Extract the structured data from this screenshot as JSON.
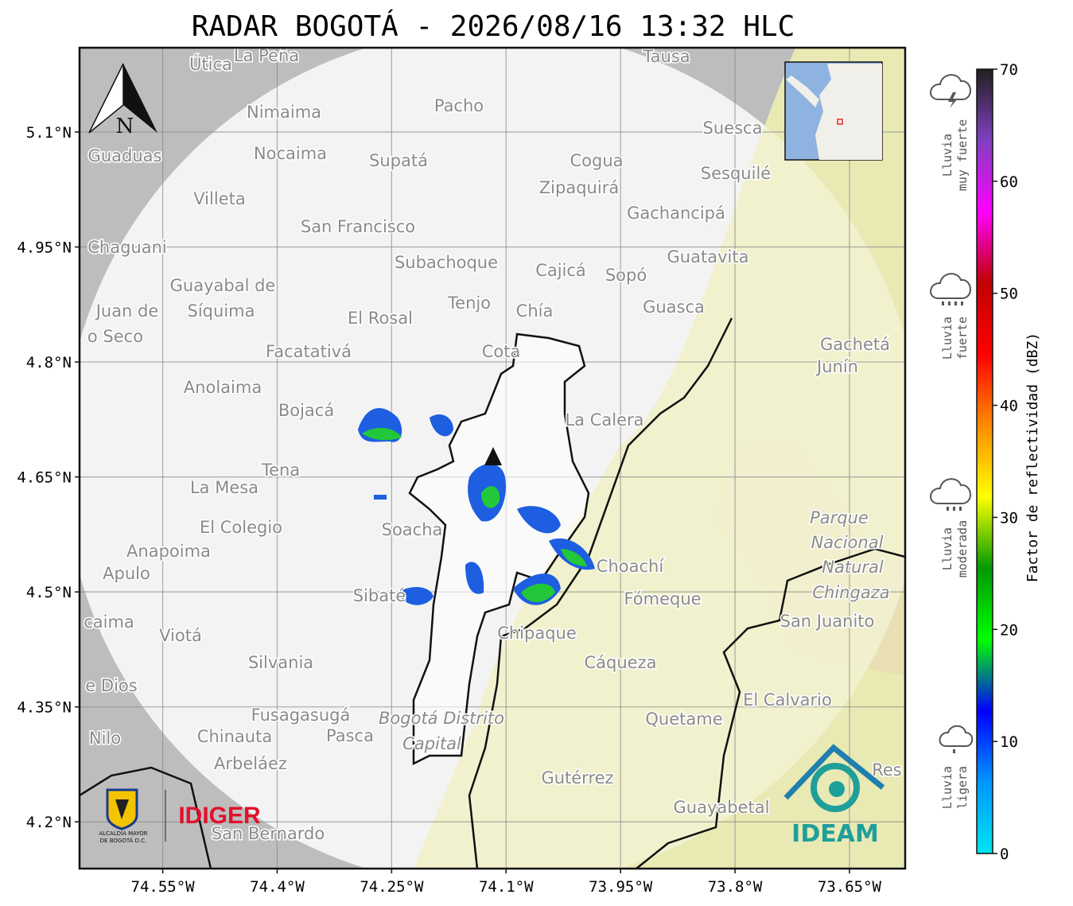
{
  "title": "RADAR BOGOTÁ - 2026/08/16 13:32 HLC",
  "north": "N",
  "xlim": [
    -74.659,
    -73.577
  ],
  "ylim": [
    4.139,
    5.21
  ],
  "xticks": [
    {
      "value": -74.55,
      "label": "74.55°W"
    },
    {
      "value": -74.4,
      "label": "74.4°W"
    },
    {
      "value": -74.25,
      "label": "74.25°W"
    },
    {
      "value": -74.1,
      "label": "74.1°W"
    },
    {
      "value": -73.95,
      "label": "73.95°W"
    },
    {
      "value": -73.8,
      "label": "73.8°W"
    },
    {
      "value": -73.65,
      "label": "73.65°W"
    }
  ],
  "yticks": [
    {
      "value": 5.1,
      "label": "5.1°N"
    },
    {
      "value": 4.95,
      "label": "4.95°N"
    },
    {
      "value": 4.8,
      "label": "4.8°N"
    },
    {
      "value": 4.65,
      "label": "4.65°N"
    },
    {
      "value": 4.5,
      "label": "4.5°N"
    },
    {
      "value": 4.35,
      "label": "4.35°N"
    },
    {
      "value": 4.2,
      "label": "4.2°N"
    }
  ],
  "grid": true,
  "places": [
    "Útica",
    "La Peña",
    "Tausa",
    "Pacho",
    "Nimaima",
    "Suesca",
    "Guaduas",
    "Nocaima",
    "Supatá",
    "Cogua",
    "Sesquilé",
    "Zipaquirá",
    "Villeta",
    "Gachancipá",
    "San Francisco",
    "Chaguani",
    "Guatavita",
    "Subachoque",
    "Cajicá",
    "Sopó",
    "Guayabal de",
    "Síquima",
    "Tenjo",
    "Guasca",
    "Juan de",
    "Chía",
    "El Rosal",
    "o Seco",
    "Gachetá",
    "Facatativá",
    "Cota",
    "Junín",
    "Anolaima",
    "Bojacá",
    "La Calera",
    "Tena",
    "La Mesa",
    "Parque",
    "El Colegio",
    "Soacha",
    "Nacional",
    "Anapoima",
    "Choachí",
    "Natural",
    "Apulo",
    "Chingaza",
    "Sibaté",
    "Fómeque",
    "San Juanito",
    "caima",
    "Viotá",
    "Chipaque",
    "Silvania",
    "Cáqueza",
    "e Dios",
    "El Calvario",
    "Fusagasugá",
    "Bogotá Distrito",
    "Quetame",
    "Nilo",
    "Chinauta",
    "Pasca",
    "Capital",
    "Arbeláez",
    "Res",
    "Gutérrez",
    "Guayabetal",
    "San Bernardo"
  ],
  "colorbar": {
    "label": "Factor de reflectividad (dBZ)",
    "lim": [
      0,
      70
    ],
    "ticks": [
      0,
      10,
      20,
      30,
      40,
      50,
      60,
      70
    ],
    "colors": [
      "#00e5f0",
      "#0096ff",
      "#0000ff",
      "#00ff00",
      "#009900",
      "#ffff00",
      "#ff8c00",
      "#ff0000",
      "#c00000",
      "#ff00ff",
      "#8040c0",
      "#202020"
    ]
  },
  "rain": [
    {
      "lines": [
        "Lluvia",
        "muy fuerte"
      ]
    },
    {
      "lines": [
        "Lluvia",
        "fuerte"
      ]
    },
    {
      "lines": [
        "Lluvia",
        "moderada"
      ]
    },
    {
      "lines": [
        "Lluvia",
        "ligera"
      ]
    }
  ],
  "logos": {
    "alcaldia": [
      "ALCALDÍA MAYOR",
      "DE BOGOTÁ D.C."
    ],
    "idiger": "IDIGER",
    "ideam": "IDEAM"
  }
}
